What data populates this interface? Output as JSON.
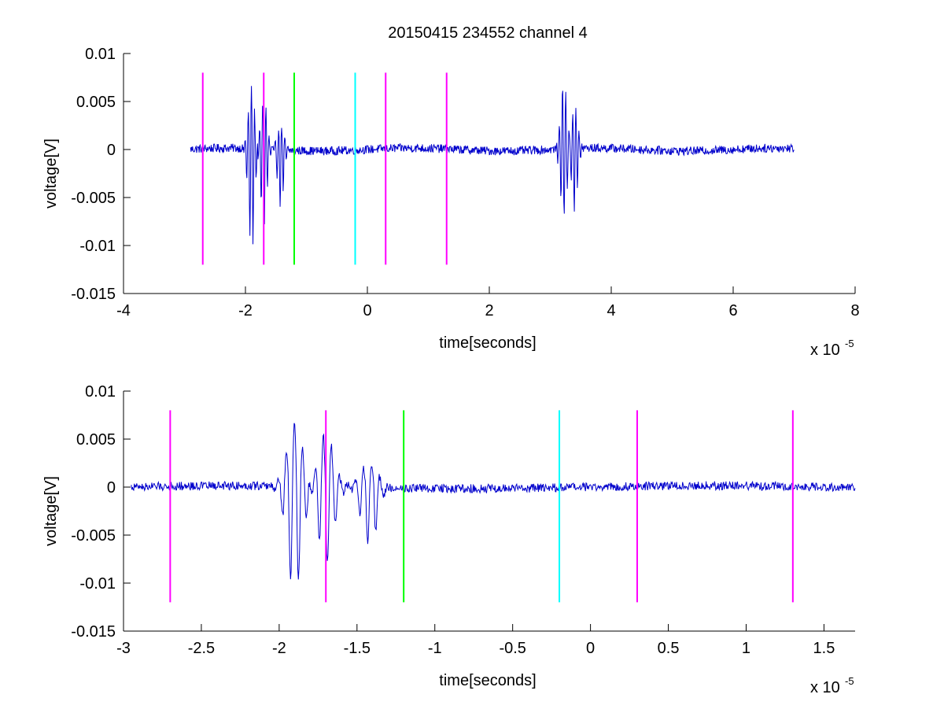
{
  "figure": {
    "title": "20150415 234552 channel 4"
  },
  "chart_data": [
    {
      "type": "line",
      "title": "20150415 234552 channel 4",
      "xlabel": "time[seconds]",
      "ylabel": "voltage[V]",
      "x_exponent_label": "x 10",
      "x_exponent_power": "-5",
      "xlim": [
        -4,
        8
      ],
      "ylim": [
        -0.015,
        0.01
      ],
      "x_ticks": [
        -4,
        -2,
        0,
        2,
        4,
        6,
        8
      ],
      "x_tick_labels": [
        "-4",
        "-2",
        "0",
        "2",
        "4",
        "6",
        "8"
      ],
      "y_ticks": [
        0.01,
        0.005,
        0,
        -0.005,
        -0.01,
        -0.015
      ],
      "y_tick_labels": [
        "0.01",
        "0.005",
        "0",
        "-0.005",
        "-0.01",
        "-0.015"
      ],
      "grid": false,
      "signal": {
        "color": "#0000cc",
        "x_range": [
          -2.9,
          7.0
        ],
        "baseline": 0,
        "bursts": [
          {
            "center": -1.9,
            "min": -0.011,
            "max": 0.0065
          },
          {
            "center": -1.7,
            "min": -0.0083,
            "max": 0.0055
          },
          {
            "center": -1.42,
            "min": -0.006,
            "max": 0.0025
          },
          {
            "center": 3.22,
            "min": -0.0075,
            "max": 0.0072
          },
          {
            "center": 3.4,
            "min": -0.0063,
            "max": 0.0045
          }
        ]
      },
      "markers": [
        {
          "x": -2.7,
          "color": "#ff00ff",
          "y_range": [
            -0.012,
            0.008
          ]
        },
        {
          "x": -1.7,
          "color": "#ff00ff",
          "y_range": [
            -0.012,
            0.008
          ]
        },
        {
          "x": -1.2,
          "color": "#00ff00",
          "y_range": [
            -0.012,
            0.008
          ]
        },
        {
          "x": -0.2,
          "color": "#00ffff",
          "y_range": [
            -0.012,
            0.008
          ]
        },
        {
          "x": 0.3,
          "color": "#ff00ff",
          "y_range": [
            -0.012,
            0.008
          ]
        },
        {
          "x": 1.3,
          "color": "#ff00ff",
          "y_range": [
            -0.012,
            0.008
          ]
        }
      ]
    },
    {
      "type": "line",
      "title": "",
      "xlabel": "time[seconds]",
      "ylabel": "voltage[V]",
      "x_exponent_label": "x 10",
      "x_exponent_power": "-5",
      "xlim": [
        -3,
        1.7
      ],
      "ylim": [
        -0.015,
        0.01
      ],
      "x_ticks": [
        -3,
        -2.5,
        -2,
        -1.5,
        -1,
        -0.5,
        0,
        0.5,
        1,
        1.5
      ],
      "x_tick_labels": [
        "-3",
        "-2.5",
        "-2",
        "-1.5",
        "-1",
        "-0.5",
        "0",
        "0.5",
        "1",
        "1.5"
      ],
      "y_ticks": [
        0.01,
        0.005,
        0,
        -0.005,
        -0.01,
        -0.015
      ],
      "y_tick_labels": [
        "0.01",
        "0.005",
        "0",
        "-0.005",
        "-0.01",
        "-0.015"
      ],
      "grid": false,
      "signal": {
        "color": "#0000cc",
        "x_range": [
          -2.95,
          1.7
        ],
        "baseline": 0,
        "bursts": [
          {
            "center": -1.9,
            "min": -0.011,
            "max": 0.0065
          },
          {
            "center": -1.7,
            "min": -0.0083,
            "max": 0.0055
          },
          {
            "center": -1.42,
            "min": -0.006,
            "max": 0.0025
          }
        ]
      },
      "markers": [
        {
          "x": -2.7,
          "color": "#ff00ff",
          "y_range": [
            -0.012,
            0.008
          ]
        },
        {
          "x": -1.7,
          "color": "#ff00ff",
          "y_range": [
            -0.012,
            0.008
          ]
        },
        {
          "x": -1.2,
          "color": "#00ff00",
          "y_range": [
            -0.012,
            0.008
          ]
        },
        {
          "x": -0.2,
          "color": "#00ffff",
          "y_range": [
            -0.012,
            0.008
          ]
        },
        {
          "x": 0.3,
          "color": "#ff00ff",
          "y_range": [
            -0.012,
            0.008
          ]
        },
        {
          "x": 1.3,
          "color": "#ff00ff",
          "y_range": [
            -0.012,
            0.008
          ]
        }
      ]
    }
  ]
}
